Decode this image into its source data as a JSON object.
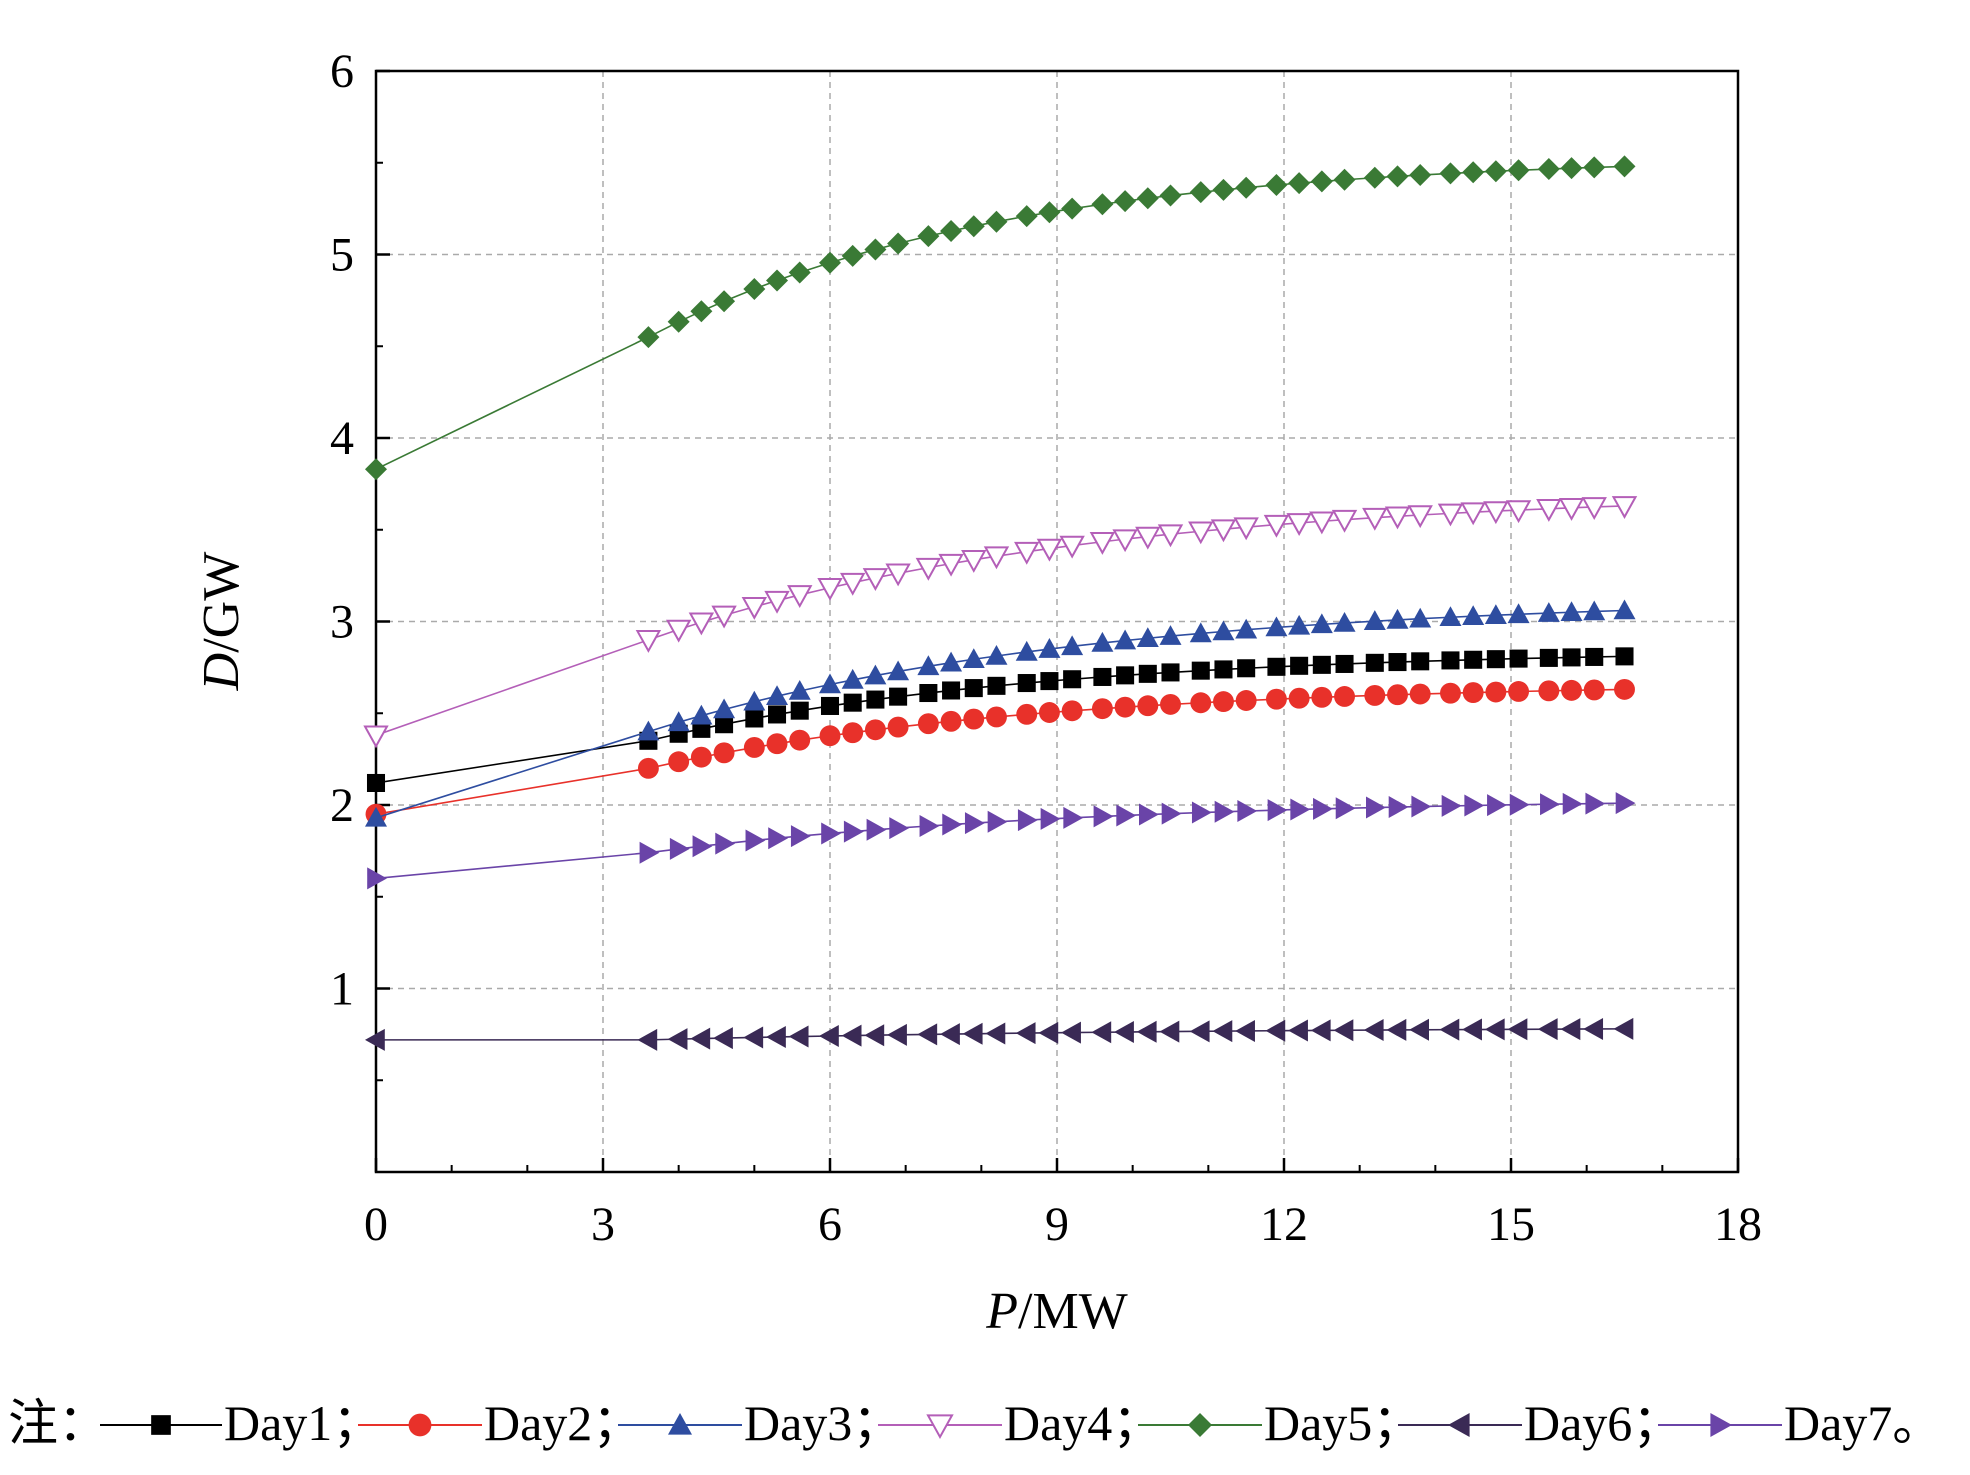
{
  "chart_data": {
    "type": "line",
    "xlabel": {
      "italic": "P",
      "rest": "/MW"
    },
    "ylabel": {
      "italic": "D",
      "rest": "/GW"
    },
    "xlim": [
      0,
      18
    ],
    "ylim": [
      0,
      6
    ],
    "xticks": [
      "0",
      "3",
      "6",
      "9",
      "12",
      "15",
      "18"
    ],
    "yticks": [
      "1",
      "2",
      "3",
      "4",
      "5",
      "6"
    ],
    "grid": true,
    "legend_prefix": "注：",
    "legend_position": "bottom",
    "x": [
      0,
      3.6,
      4.0,
      4.3,
      4.6,
      5.0,
      5.3,
      5.6,
      6.0,
      6.3,
      6.6,
      6.9,
      7.3,
      7.6,
      7.9,
      8.2,
      8.6,
      8.9,
      9.2,
      9.6,
      9.9,
      10.2,
      10.5,
      10.9,
      11.2,
      11.5,
      11.9,
      12.2,
      12.5,
      12.8,
      13.2,
      13.5,
      13.8,
      14.2,
      14.5,
      14.8,
      15.1,
      15.5,
      15.8,
      16.1,
      16.5
    ],
    "series": [
      {
        "name": "Day1",
        "marker": "square",
        "color": "#000000",
        "line_color": "#000000",
        "start": 2.12,
        "first": 2.35,
        "end": 2.81,
        "k": 0.2
      },
      {
        "name": "Day2",
        "marker": "circle",
        "color": "#e8312a",
        "line_color": "#e8312a",
        "start": 1.95,
        "first": 2.2,
        "end": 2.63,
        "k": 0.2
      },
      {
        "name": "Day3",
        "marker": "triangle-up",
        "color": "#2e4da0",
        "line_color": "#2e4da0",
        "start": 1.93,
        "first": 2.4,
        "end": 3.06,
        "k": 0.18
      },
      {
        "name": "Day4",
        "marker": "triangle-down-open",
        "color": "#b45fb8",
        "line_color": "#b45fb8",
        "start": 2.38,
        "first": 2.9,
        "end": 3.63,
        "k": 0.18
      },
      {
        "name": "Day5",
        "marker": "diamond",
        "color": "#3a7a35",
        "line_color": "#3a7a35",
        "start": 3.83,
        "first": 4.55,
        "end": 5.48,
        "k": 0.22
      },
      {
        "name": "Day6",
        "marker": "triangle-left",
        "color": "#3a2a55",
        "line_color": "#3a2a55",
        "start": 0.72,
        "first": 0.72,
        "end": 0.78,
        "k": 0.15
      },
      {
        "name": "Day7",
        "marker": "triangle-right",
        "color": "#6a44a8",
        "line_color": "#6a44a8",
        "start": 1.6,
        "first": 1.74,
        "end": 2.01,
        "k": 0.18
      }
    ]
  }
}
